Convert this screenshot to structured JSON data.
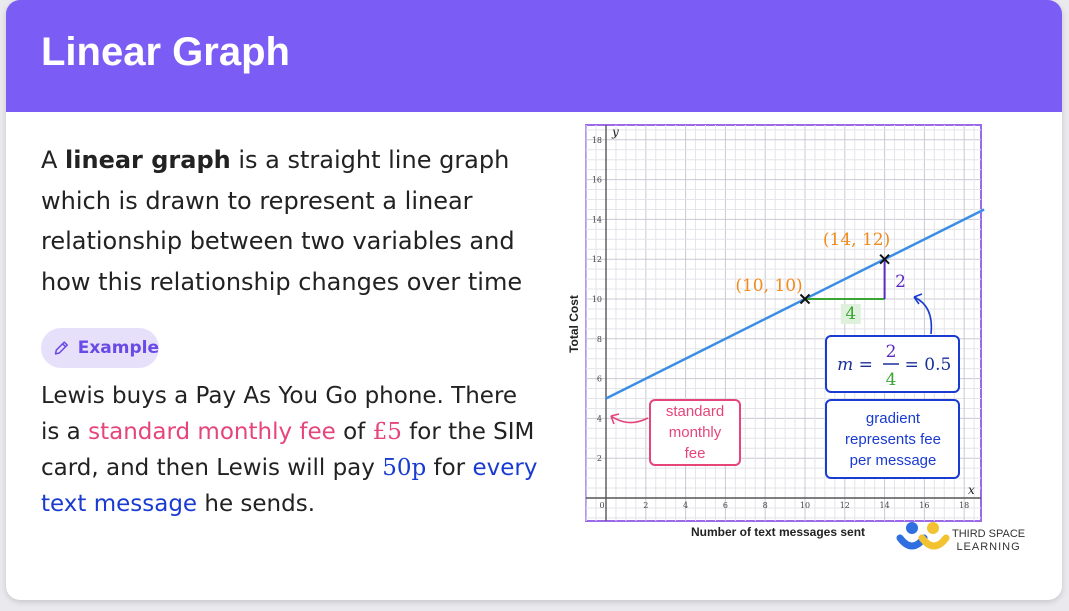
{
  "header": {
    "title": "Linear Graph"
  },
  "intro": {
    "p1": "A ",
    "bold": "linear graph",
    "p2": " is a straight line graph which is drawn to represent a linear relationship between two variables and how this relationship changes over time"
  },
  "example_badge": {
    "label": "Example",
    "icon": "pencil-icon"
  },
  "example": {
    "t1": "Lewis buys a Pay As You Go phone. There is a ",
    "highlight1": "standard monthly fee",
    "t2": " of ",
    "fee": "£5",
    "t3": " for the SIM card, and then Lewis will pay ",
    "rate": "50p",
    "t4": " for ",
    "highlight2": "every text message",
    "t5": " he sends."
  },
  "colors": {
    "header": "#7b5cf5",
    "pink": "#e6457a",
    "blue": "#1a3bd1",
    "line": "#3b8ee6",
    "orange": "#f28a1a",
    "green": "#3aa535",
    "purple": "#5b2bbf"
  },
  "chart_data": {
    "type": "line",
    "xlabel": "Number of text messages sent",
    "ylabel": "Total Cost",
    "x_axis_letter": "x",
    "y_axis_letter": "y",
    "xlim": [
      0,
      19
    ],
    "ylim": [
      0,
      19
    ],
    "xticks": [
      0,
      2,
      4,
      6,
      8,
      10,
      12,
      14,
      16,
      18
    ],
    "yticks": [
      2,
      4,
      6,
      8,
      10,
      12,
      14,
      16,
      18
    ],
    "grid": true,
    "series": [
      {
        "equation": "y = 0.5x + 5",
        "x": [
          0,
          19
        ],
        "y": [
          5,
          14.5
        ]
      }
    ],
    "points": [
      {
        "x": 10,
        "y": 10,
        "label": "(10, 10)"
      },
      {
        "x": 14,
        "y": 12,
        "label": "(14, 12)"
      }
    ],
    "run": {
      "from": 10,
      "to": 14,
      "at_y": 10,
      "label": "4"
    },
    "rise": {
      "from": 10,
      "to": 12,
      "at_x": 14,
      "label": "2"
    },
    "annotations": {
      "gradient_formula": {
        "lhs": "m =",
        "num": "2",
        "den": "4",
        "rhs": "= 0.5"
      },
      "gradient_note": [
        "gradient",
        "represents fee",
        "per message"
      ],
      "intercept_note": [
        "standard",
        "monthly",
        "fee"
      ]
    }
  },
  "branding": {
    "line1": "THIRD SPACE",
    "line2": "LEARNING"
  }
}
